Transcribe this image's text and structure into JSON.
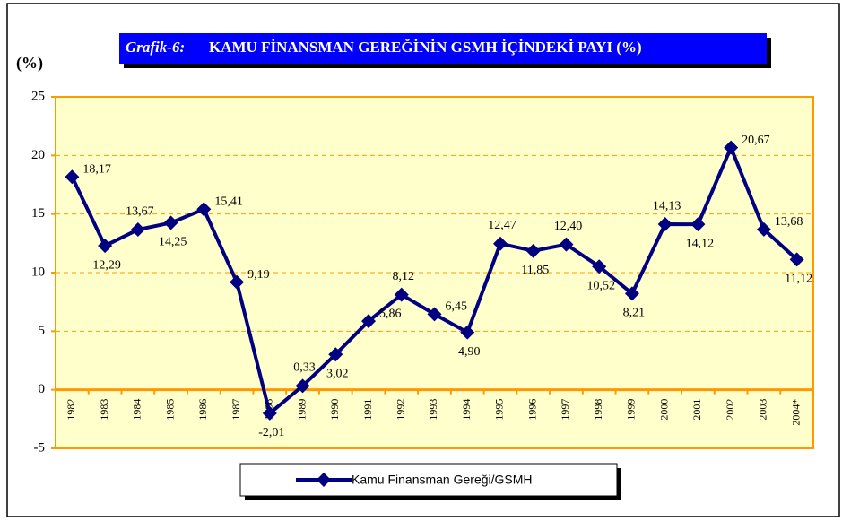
{
  "chart_data": {
    "type": "line",
    "title_label": "Grafik-6:",
    "title": "KAMU FİNANSMAN GEREĞİNİN GSMH İÇİNDEKİ PAYI (%)",
    "y_label": "(%)",
    "categories": [
      "1982",
      "1983",
      "1984",
      "1985",
      "1986",
      "1987",
      "1988",
      "1989",
      "1990",
      "1991",
      "1992",
      "1993",
      "1994",
      "1995",
      "1996",
      "1997",
      "1998",
      "1999",
      "2000",
      "2001",
      "2002",
      "2003",
      "2004*"
    ],
    "series": [
      {
        "name": "Kamu Finansman Gereği/GSMH",
        "color": "#000080",
        "values": [
          18.17,
          12.29,
          13.67,
          14.25,
          15.41,
          9.19,
          -2.01,
          0.33,
          3.02,
          5.86,
          8.12,
          6.45,
          4.9,
          12.47,
          11.85,
          12.4,
          10.52,
          8.21,
          14.13,
          14.12,
          20.67,
          13.68,
          11.12
        ],
        "value_labels": [
          "18,17",
          "12,29",
          "13,67",
          "14,25",
          "15,41",
          "9,19",
          "-2,01",
          "0,33",
          "3,02",
          "5,86",
          "8,12",
          "6,45",
          "4,90",
          "12,47",
          "11,85",
          "12,40",
          "10,52",
          "8,21",
          "14,13",
          "14,12",
          "20,67",
          "13,68",
          "11,12"
        ]
      }
    ],
    "ylim": [
      -5,
      25
    ],
    "yticks": [
      -5,
      0,
      5,
      10,
      15,
      20,
      25
    ],
    "grid": true
  }
}
